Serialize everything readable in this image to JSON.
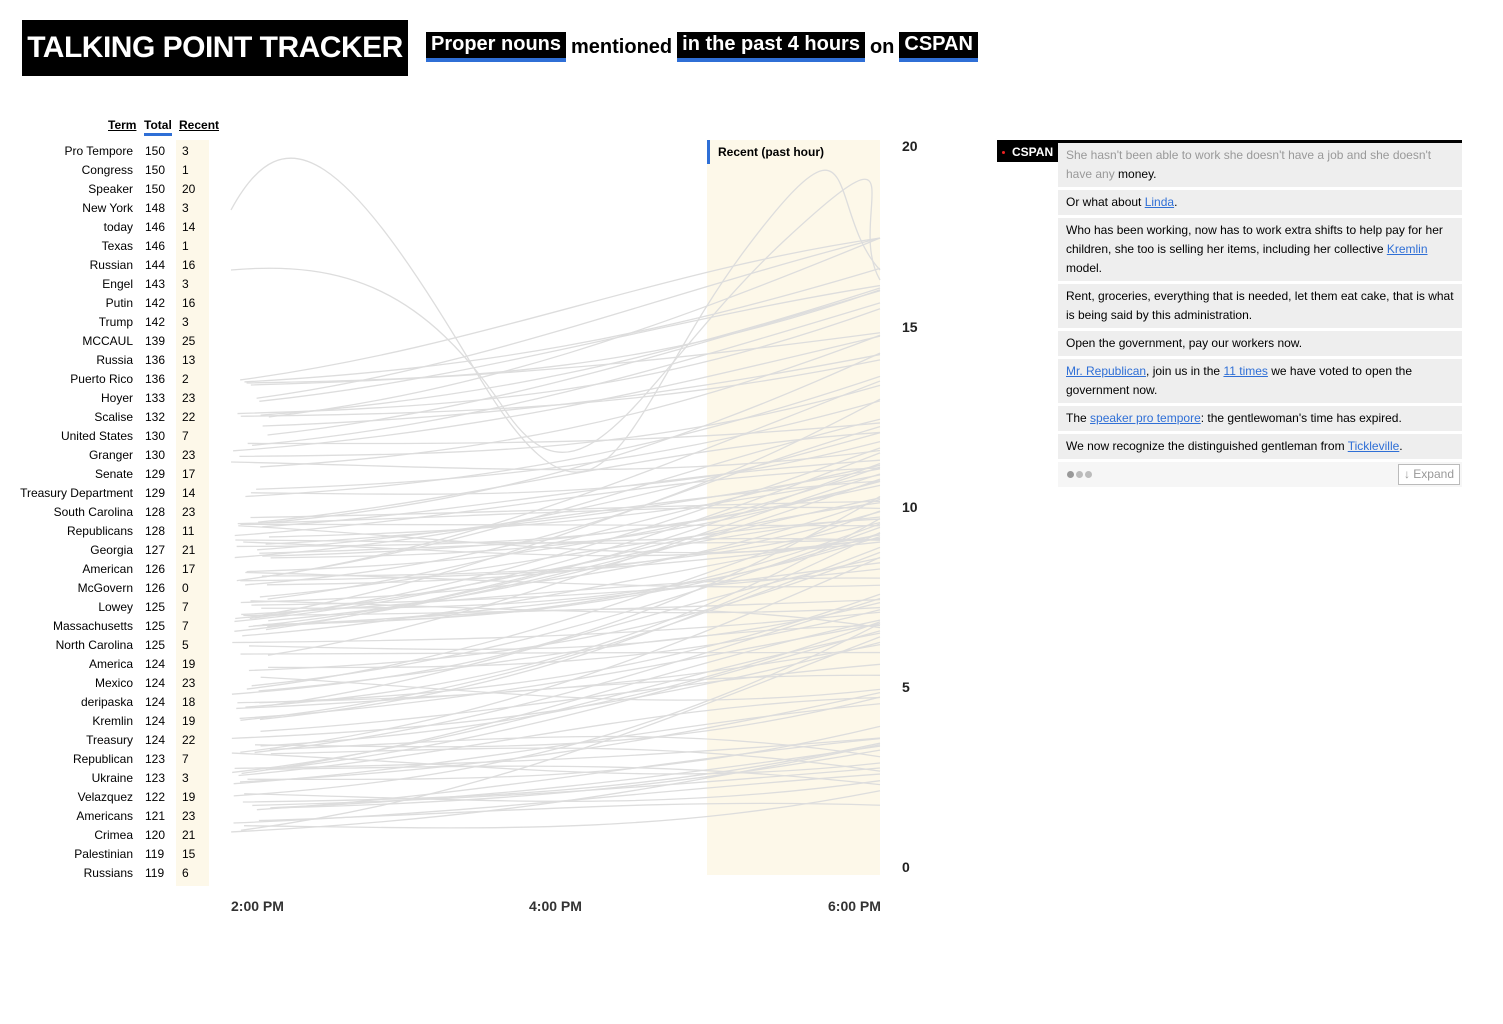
{
  "brand": "TALKING POINT TRACKER",
  "headline": {
    "type_label": "Proper nouns",
    "verb": "mentioned",
    "period_label": "in the past 4 hours",
    "on": "on",
    "channel_label": "CSPAN"
  },
  "table": {
    "headers": {
      "term": "Term",
      "total": "Total",
      "recent": "Recent"
    },
    "rows": [
      {
        "term": "Pro Tempore",
        "total": "150",
        "recent": "3"
      },
      {
        "term": "Congress",
        "total": "150",
        "recent": "1"
      },
      {
        "term": "Speaker",
        "total": "150",
        "recent": "20"
      },
      {
        "term": "New York",
        "total": "148",
        "recent": "3"
      },
      {
        "term": "today",
        "total": "146",
        "recent": "14"
      },
      {
        "term": "Texas",
        "total": "146",
        "recent": "1"
      },
      {
        "term": "Russian",
        "total": "144",
        "recent": "16"
      },
      {
        "term": "Engel",
        "total": "143",
        "recent": "3"
      },
      {
        "term": "Putin",
        "total": "142",
        "recent": "16"
      },
      {
        "term": "Trump",
        "total": "142",
        "recent": "3"
      },
      {
        "term": "MCCAUL",
        "total": "139",
        "recent": "25"
      },
      {
        "term": "Russia",
        "total": "136",
        "recent": "13"
      },
      {
        "term": "Puerto Rico",
        "total": "136",
        "recent": "2"
      },
      {
        "term": "Hoyer",
        "total": "133",
        "recent": "23"
      },
      {
        "term": "Scalise",
        "total": "132",
        "recent": "22"
      },
      {
        "term": "United States",
        "total": "130",
        "recent": "7"
      },
      {
        "term": "Granger",
        "total": "130",
        "recent": "23"
      },
      {
        "term": "Senate",
        "total": "129",
        "recent": "17"
      },
      {
        "term": "Treasury Department",
        "total": "129",
        "recent": "14"
      },
      {
        "term": "South Carolina",
        "total": "128",
        "recent": "23"
      },
      {
        "term": "Republicans",
        "total": "128",
        "recent": "11"
      },
      {
        "term": "Georgia",
        "total": "127",
        "recent": "21"
      },
      {
        "term": "American",
        "total": "126",
        "recent": "17"
      },
      {
        "term": "McGovern",
        "total": "126",
        "recent": "0"
      },
      {
        "term": "Lowey",
        "total": "125",
        "recent": "7"
      },
      {
        "term": "Massachusetts",
        "total": "125",
        "recent": "7"
      },
      {
        "term": "North Carolina",
        "total": "125",
        "recent": "5"
      },
      {
        "term": "America",
        "total": "124",
        "recent": "19"
      },
      {
        "term": "Mexico",
        "total": "124",
        "recent": "23"
      },
      {
        "term": "deripaska",
        "total": "124",
        "recent": "18"
      },
      {
        "term": "Kremlin",
        "total": "124",
        "recent": "19"
      },
      {
        "term": "Treasury",
        "total": "124",
        "recent": "22"
      },
      {
        "term": "Republican",
        "total": "123",
        "recent": "7"
      },
      {
        "term": "Ukraine",
        "total": "123",
        "recent": "3"
      },
      {
        "term": "Velazquez",
        "total": "122",
        "recent": "19"
      },
      {
        "term": "Americans",
        "total": "121",
        "recent": "23"
      },
      {
        "term": "Crimea",
        "total": "120",
        "recent": "21"
      },
      {
        "term": "Palestinian",
        "total": "119",
        "recent": "15"
      },
      {
        "term": "Russians",
        "total": "119",
        "recent": "6"
      }
    ]
  },
  "chart": {
    "recent_label": "Recent (past hour)",
    "y_ticks": [
      "20",
      "15",
      "10",
      "5",
      "0"
    ],
    "x_ticks": [
      "2:00 PM",
      "4:00 PM",
      "6:00 PM"
    ]
  },
  "chart_data": {
    "type": "line",
    "x": [
      "2:00 PM",
      "4:00 PM",
      "6:00 PM"
    ],
    "ylim": [
      0,
      20
    ],
    "highlight_band": "Recent (past hour)",
    "line_color": "#dddddd",
    "band_color": "#fdf8e9"
  },
  "feed": {
    "channel": "CSPAN",
    "lines": [
      {
        "segments": [
          {
            "t": "She hasn't been able to work she doesn't have a job and she doesn't have any "
          },
          {
            "t": "money."
          }
        ]
      },
      {
        "segments": [
          {
            "t": "Or what about "
          },
          {
            "t": "Linda",
            "link": true
          },
          {
            "t": "."
          }
        ]
      },
      {
        "segments": [
          {
            "t": "Who has been working, now has to work extra shifts to help pay for her children, she too is selling her items, including her collective "
          },
          {
            "t": "Kremlin",
            "link": true
          },
          {
            "t": " model."
          }
        ]
      },
      {
        "segments": [
          {
            "t": "Rent, groceries, everything that is needed, let them eat cake, that is what is being said by this administration."
          }
        ]
      },
      {
        "segments": [
          {
            "t": "Open the government, pay our workers now."
          }
        ]
      },
      {
        "segments": [
          {
            "t": "Mr. Republican",
            "link": true
          },
          {
            "t": ", join us in the "
          },
          {
            "t": "11 times",
            "link": true
          },
          {
            "t": " we have voted to open the government now."
          }
        ]
      },
      {
        "segments": [
          {
            "t": "The "
          },
          {
            "t": "speaker pro tempore",
            "link": true
          },
          {
            "t": ": the gentlewoman's time has expired."
          }
        ]
      },
      {
        "segments": [
          {
            "t": "We now recognize the distinguished gentleman from "
          },
          {
            "t": "Tickleville",
            "link": true
          },
          {
            "t": "."
          }
        ]
      }
    ],
    "expand_label": "↓ Expand"
  }
}
